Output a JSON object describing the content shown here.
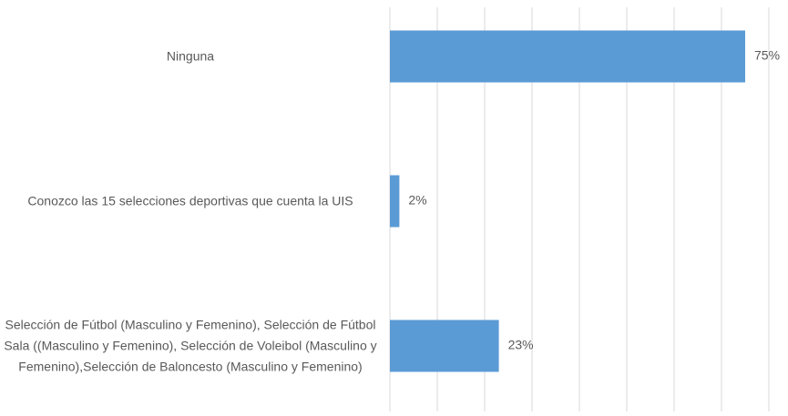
{
  "chart_data": {
    "type": "bar",
    "orientation": "horizontal",
    "categories": [
      "Ninguna",
      "Conozco las 15 selecciones deportivas que cuenta la UIS",
      "Selección de Fútbol (Masculino y Femenino), Selección de Fútbol Sala ((Masculino y Femenino), Selección de Voleibol (Masculino y Femenino),Selección de Baloncesto (Masculino y Femenino)"
    ],
    "values": [
      75,
      2,
      23
    ],
    "value_labels": [
      "75%",
      "2%",
      "23%"
    ],
    "color": "#5b9bd5",
    "xlim": [
      0,
      80
    ],
    "xticks": [
      0,
      10,
      20,
      30,
      40,
      50,
      60,
      70,
      80
    ],
    "grid": true
  }
}
